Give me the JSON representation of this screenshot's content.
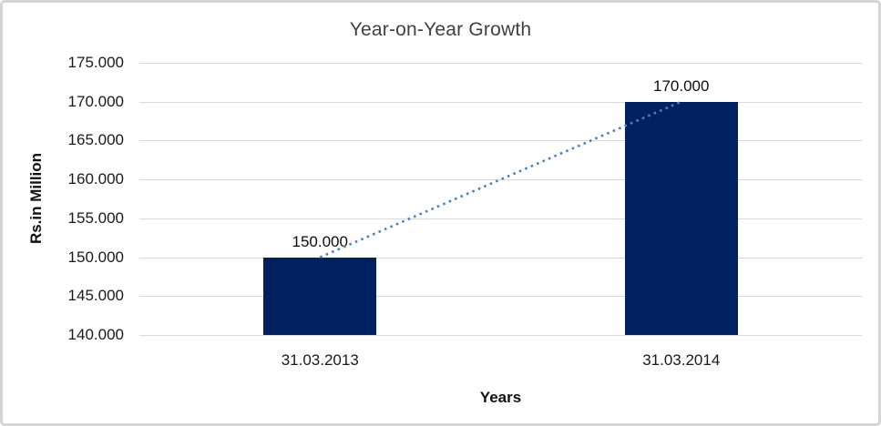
{
  "chart_data": {
    "type": "bar",
    "title": "Year-on-Year Growth",
    "xlabel": "Years",
    "ylabel": "Rs.in Million",
    "categories": [
      "31.03.2013",
      "31.03.2014"
    ],
    "values": [
      150000,
      170000
    ],
    "value_labels": [
      "150.000",
      "170.000"
    ],
    "y_axis": {
      "min": 140000,
      "max": 175000,
      "step": 5000,
      "tick_labels": [
        "140.000",
        "145.000",
        "150.000",
        "155.000",
        "160.000",
        "165.000",
        "170.000",
        "175.000"
      ]
    },
    "grid": true,
    "legend": "none",
    "trendline": {
      "style": "dotted",
      "from_category": "31.03.2013",
      "to_category": "31.03.2014"
    },
    "colors": {
      "bar": "#002060",
      "gridline": "#d9d9d9",
      "trendline": "#4f81bd",
      "title_text": "#404040",
      "tick_text": "#1a1a1a",
      "border": "#d5d5d5"
    }
  }
}
